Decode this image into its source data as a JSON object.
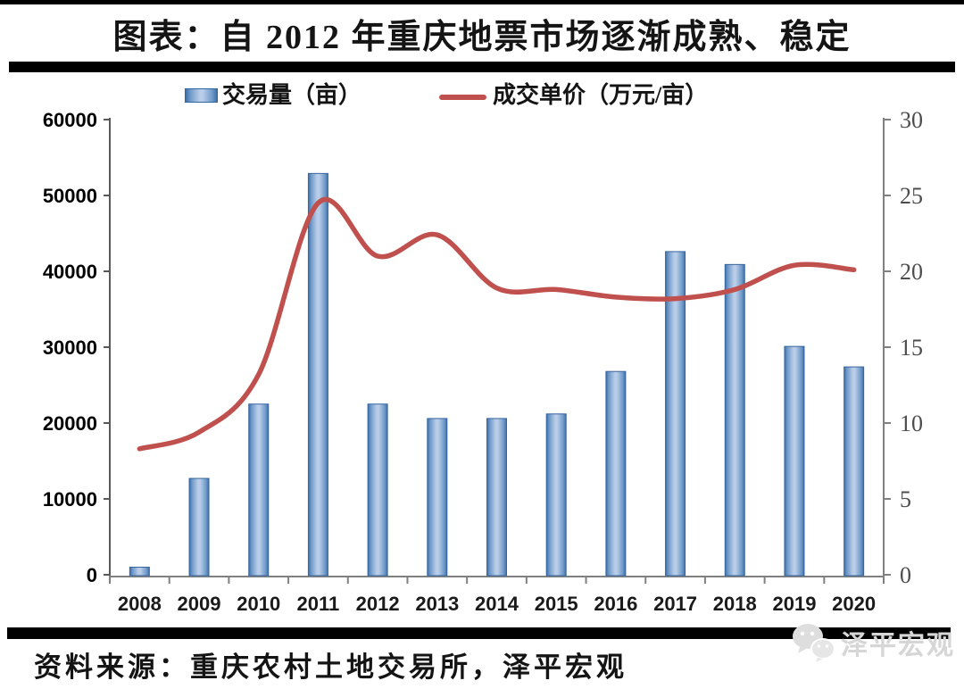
{
  "title": "图表：自 2012 年重庆地票市场逐渐成熟、稳定",
  "legend": [
    {
      "label": "交易量（亩）",
      "type": "bar"
    },
    {
      "label": "成交单价（万元/亩）",
      "type": "line"
    }
  ],
  "footer": {
    "source_text": "资料来源：重庆农村土地交易所，泽平宏观",
    "watermark_text": "泽平宏观",
    "watermark_icon": "wechat-logo-icon"
  },
  "colors": {
    "line_series": "#c0504d",
    "bar_edge": "#3e6fa8",
    "bar_mid": "#b9cde8",
    "bar_stroke": "#36649f",
    "axis_left": "#595959",
    "axis_right": "#808080",
    "axis_bottom": "#808080",
    "label_left": "#000000",
    "label_right": "#4d4d4d",
    "label_x": "#1a1a1a",
    "frame_bars": "#000000"
  },
  "chart_data": {
    "type": "bar+line combo",
    "title": "自2012年重庆地票市场逐渐成熟、稳定",
    "categories": [
      "2008",
      "2009",
      "2010",
      "2011",
      "2012",
      "2013",
      "2014",
      "2015",
      "2016",
      "2017",
      "2018",
      "2019",
      "2020"
    ],
    "series": [
      {
        "name": "交易量（亩）",
        "type": "bar",
        "axis": "left",
        "values": [
          1000,
          12700,
          22500,
          52900,
          22500,
          20600,
          20600,
          21200,
          26800,
          42600,
          40900,
          30100,
          27400
        ]
      },
      {
        "name": "成交单价（万元/亩）",
        "type": "line",
        "axis": "right",
        "values": [
          8.3,
          9.4,
          13.2,
          24.5,
          21.0,
          22.4,
          18.9,
          18.8,
          18.3,
          18.2,
          18.8,
          20.4,
          20.1
        ]
      }
    ],
    "left_axis": {
      "min": 0,
      "max": 60000,
      "step": 10000
    },
    "right_axis": {
      "min": 0,
      "max": 30,
      "step": 5
    },
    "legend_position": "top",
    "grid": "off",
    "line_smooth": true
  }
}
